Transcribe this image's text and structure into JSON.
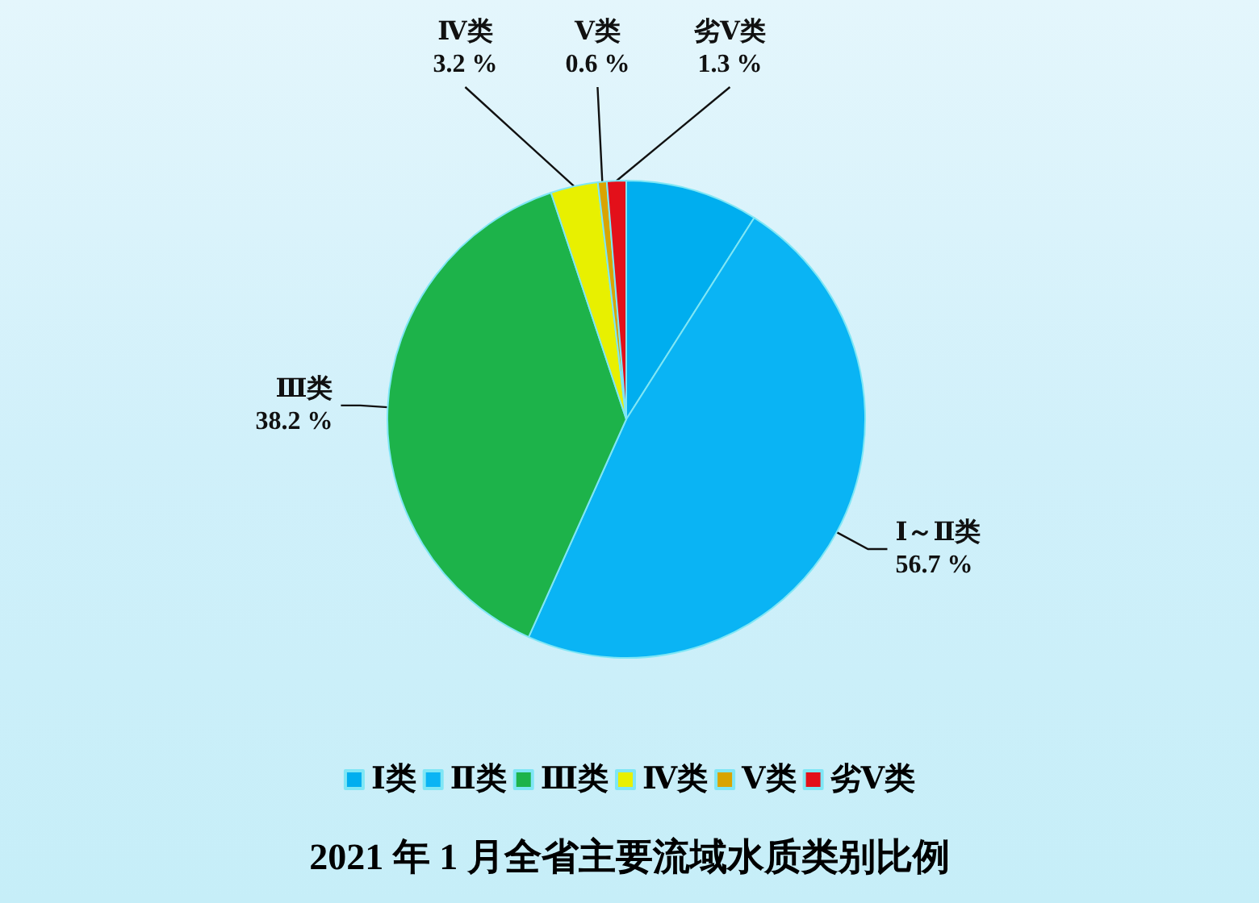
{
  "chart_data": {
    "type": "pie",
    "title": "2021 年 1 月全省主要流域水质类别比例",
    "categories": [
      "Ⅰ类",
      "Ⅱ类",
      "Ⅲ类",
      "Ⅳ类",
      "Ⅴ类",
      "劣Ⅴ类"
    ],
    "values": [
      9,
      47.7,
      38.2,
      3.2,
      0.6,
      1.3
    ],
    "colors": [
      "#00aeef",
      "#0ab4f4",
      "#1db34a",
      "#e8f000",
      "#d9a400",
      "#e3101a"
    ],
    "value_labels": [
      null,
      "Ⅰ～Ⅱ类\n56.7 %",
      "Ⅲ类\n38.2 %",
      "Ⅳ类\n3.2 %",
      "Ⅴ类\n0.6 %",
      "劣Ⅴ类\n1.3 %"
    ],
    "legend": "bottom"
  }
}
